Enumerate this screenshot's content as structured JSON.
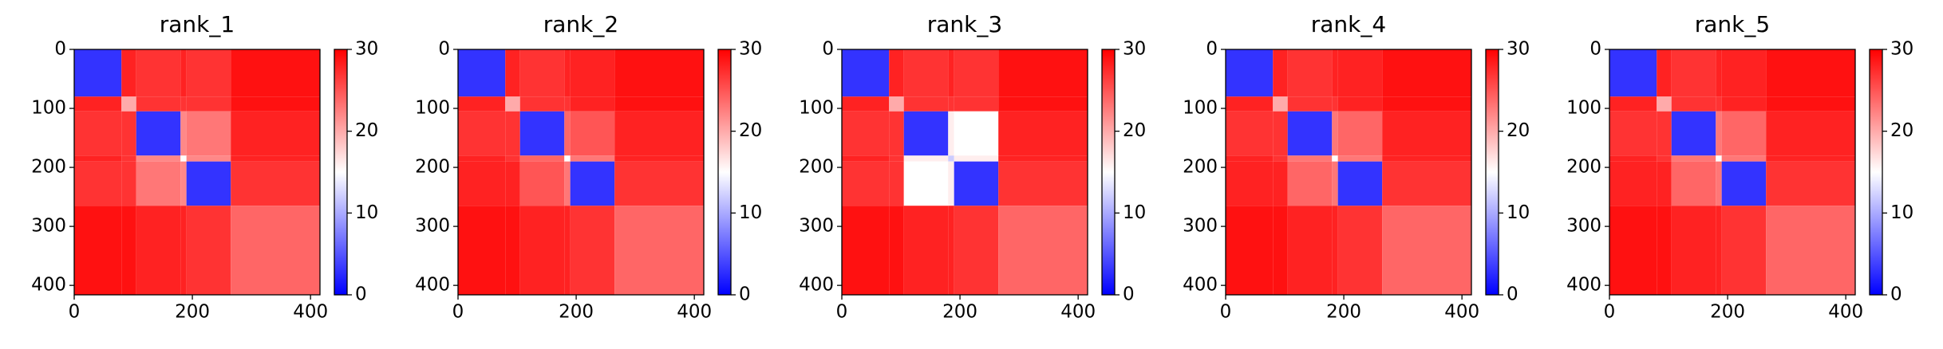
{
  "chart_data": [
    {
      "type": "heatmap",
      "title": "rank_1",
      "colormap": "bwr",
      "edges": [
        0,
        80,
        105,
        180,
        190,
        265,
        416
      ],
      "values": [
        [
          3,
          28,
          27,
          28,
          27,
          29
        ],
        [
          28,
          20,
          27,
          27,
          27,
          29
        ],
        [
          27,
          27,
          3,
          22,
          23,
          28
        ],
        [
          28,
          27,
          22,
          15,
          22,
          28
        ],
        [
          27,
          27,
          23,
          22,
          3,
          27
        ],
        [
          29,
          29,
          28,
          28,
          27,
          24
        ]
      ],
      "xlim": [
        0,
        416
      ],
      "ylim": [
        416,
        0
      ],
      "xticks": [
        0,
        200,
        400
      ],
      "yticks": [
        0,
        100,
        200,
        300,
        400
      ],
      "clim": [
        0,
        30
      ],
      "cticks": [
        0,
        10,
        20,
        30
      ]
    },
    {
      "type": "heatmap",
      "title": "rank_2",
      "colormap": "bwr",
      "edges": [
        0,
        80,
        105,
        180,
        190,
        265,
        416
      ],
      "values": [
        [
          3,
          28,
          27,
          28,
          28,
          29
        ],
        [
          28,
          20,
          27,
          27,
          28,
          29
        ],
        [
          27,
          27,
          3,
          24,
          25,
          28
        ],
        [
          28,
          27,
          24,
          15,
          23,
          28
        ],
        [
          28,
          28,
          25,
          23,
          3,
          27
        ],
        [
          29,
          29,
          28,
          28,
          27,
          24
        ]
      ],
      "xlim": [
        0,
        416
      ],
      "ylim": [
        416,
        0
      ],
      "xticks": [
        0,
        200,
        400
      ],
      "yticks": [
        0,
        100,
        200,
        300,
        400
      ],
      "clim": [
        0,
        30
      ],
      "cticks": [
        0,
        10,
        20,
        30
      ]
    },
    {
      "type": "heatmap",
      "title": "rank_3",
      "colormap": "bwr",
      "edges": [
        0,
        80,
        105,
        180,
        190,
        265,
        416
      ],
      "values": [
        [
          3,
          28,
          27,
          28,
          27,
          29
        ],
        [
          28,
          20,
          27,
          27,
          27,
          29
        ],
        [
          27,
          27,
          3,
          16,
          15,
          28
        ],
        [
          28,
          27,
          16,
          12,
          16,
          28
        ],
        [
          27,
          27,
          15,
          16,
          3,
          27
        ],
        [
          29,
          29,
          28,
          28,
          27,
          24
        ]
      ],
      "xlim": [
        0,
        416
      ],
      "ylim": [
        416,
        0
      ],
      "xticks": [
        0,
        200,
        400
      ],
      "yticks": [
        0,
        100,
        200,
        300,
        400
      ],
      "clim": [
        0,
        30
      ],
      "cticks": [
        0,
        10,
        20,
        30
      ]
    },
    {
      "type": "heatmap",
      "title": "rank_4",
      "colormap": "bwr",
      "edges": [
        0,
        80,
        105,
        180,
        190,
        265,
        416
      ],
      "values": [
        [
          3,
          28,
          27,
          28,
          28,
          29
        ],
        [
          28,
          20,
          27,
          27,
          28,
          29
        ],
        [
          27,
          27,
          3,
          23,
          24,
          28
        ],
        [
          28,
          27,
          23,
          15,
          23,
          28
        ],
        [
          28,
          28,
          24,
          23,
          3,
          27
        ],
        [
          29,
          29,
          28,
          28,
          27,
          24
        ]
      ],
      "xlim": [
        0,
        416
      ],
      "ylim": [
        416,
        0
      ],
      "xticks": [
        0,
        200,
        400
      ],
      "yticks": [
        0,
        100,
        200,
        300,
        400
      ],
      "clim": [
        0,
        30
      ],
      "cticks": [
        0,
        10,
        20,
        30
      ]
    },
    {
      "type": "heatmap",
      "title": "rank_5",
      "colormap": "bwr",
      "edges": [
        0,
        80,
        105,
        180,
        190,
        265,
        416
      ],
      "values": [
        [
          3,
          28,
          27,
          28,
          28,
          29
        ],
        [
          28,
          20,
          27,
          27,
          28,
          29
        ],
        [
          27,
          27,
          3,
          23,
          24,
          28
        ],
        [
          28,
          27,
          23,
          15,
          23,
          28
        ],
        [
          28,
          28,
          24,
          23,
          3,
          27
        ],
        [
          29,
          29,
          28,
          28,
          27,
          24
        ]
      ],
      "xlim": [
        0,
        416
      ],
      "ylim": [
        416,
        0
      ],
      "xticks": [
        0,
        200,
        400
      ],
      "yticks": [
        0,
        100,
        200,
        300,
        400
      ],
      "clim": [
        0,
        30
      ],
      "cticks": [
        0,
        10,
        20,
        30
      ]
    }
  ]
}
